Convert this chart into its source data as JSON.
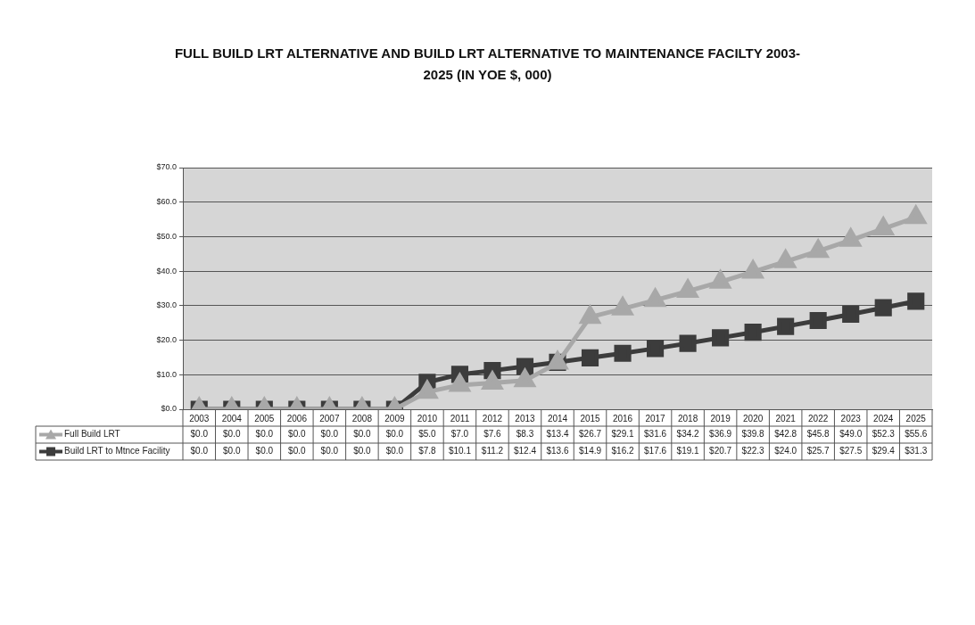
{
  "chart_data": {
    "type": "line",
    "title": "FULL BUILD LRT ALTERNATIVE AND BUILD LRT ALTERNATIVE TO MAINTENANCE FACILTY 2003-2025 (IN YOE $, 000)",
    "categories": [
      "2003",
      "2004",
      "2005",
      "2006",
      "2007",
      "2008",
      "2009",
      "2010",
      "2011",
      "2012",
      "2013",
      "2014",
      "2015",
      "2016",
      "2017",
      "2018",
      "2019",
      "2020",
      "2021",
      "2022",
      "2023",
      "2024",
      "2025"
    ],
    "series": [
      {
        "name": "Full Build LRT",
        "color": "#a8a8a8",
        "marker": "triangle",
        "values": [
          0,
          0,
          0,
          0,
          0,
          0,
          0,
          5.0,
          7.0,
          7.6,
          8.3,
          13.4,
          26.7,
          29.1,
          31.6,
          34.2,
          36.9,
          39.8,
          42.8,
          45.8,
          49.0,
          52.3,
          55.6
        ],
        "value_labels": [
          "$0.0",
          "$0.0",
          "$0.0",
          "$0.0",
          "$0.0",
          "$0.0",
          "$0.0",
          "$5.0",
          "$7.0",
          "$7.6",
          "$8.3",
          "$13.4",
          "$26.7",
          "$29.1",
          "$31.6",
          "$34.2",
          "$36.9",
          "$39.8",
          "$42.8",
          "$45.8",
          "$49.0",
          "$52.3",
          "$55.6"
        ]
      },
      {
        "name": "Build LRT to Mtnce Facility",
        "color": "#3c3c3c",
        "marker": "square",
        "values": [
          0,
          0,
          0,
          0,
          0,
          0,
          0,
          7.8,
          10.1,
          11.2,
          12.4,
          13.6,
          14.9,
          16.2,
          17.6,
          19.1,
          20.7,
          22.3,
          24.0,
          25.7,
          27.5,
          29.4,
          31.3
        ],
        "value_labels": [
          "$0.0",
          "$0.0",
          "$0.0",
          "$0.0",
          "$0.0",
          "$0.0",
          "$0.0",
          "$7.8",
          "$10.1",
          "$11.2",
          "$12.4",
          "$13.6",
          "$14.9",
          "$16.2",
          "$17.6",
          "$19.1",
          "$20.7",
          "$22.3",
          "$24.0",
          "$25.7",
          "$27.5",
          "$29.4",
          "$31.3"
        ]
      }
    ],
    "ylim": [
      0,
      70
    ],
    "yticks": [
      {
        "value": 0,
        "label": "$0.0"
      },
      {
        "value": 10,
        "label": "$10.0"
      },
      {
        "value": 20,
        "label": "$20.0"
      },
      {
        "value": 30,
        "label": "$30.0"
      },
      {
        "value": 40,
        "label": "$40.0"
      },
      {
        "value": 50,
        "label": "$50.0"
      },
      {
        "value": 60,
        "label": "$60.0"
      },
      {
        "value": 70,
        "label": "$70.0"
      }
    ],
    "grid": "y",
    "legend": "bottom left"
  }
}
